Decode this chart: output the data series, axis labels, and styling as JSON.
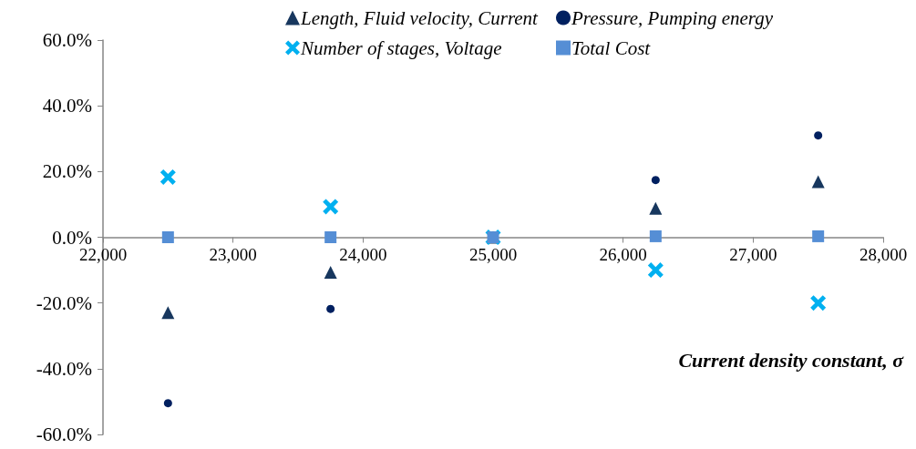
{
  "chart_data": {
    "type": "scatter",
    "xlabel": "Current density constant, σ",
    "series": [
      {
        "name": "Length, Fluid velocity, Current",
        "color": "#17375e",
        "marker": "triangle",
        "x": [
          22500,
          23750,
          25000,
          26250,
          27500
        ],
        "values": [
          -22.9,
          -10.7,
          0,
          8.8,
          16.9
        ]
      },
      {
        "name": "Pressure, Pumping energy",
        "color": "#002060",
        "marker": "circle",
        "x": [
          22500,
          23750,
          25000,
          26250,
          27500
        ],
        "values": [
          -50.5,
          -21.8,
          null,
          17.4,
          31.0
        ]
      },
      {
        "name": "Number of stages, Voltage",
        "color": "#00b0f0",
        "marker": "cross",
        "x": [
          22500,
          23750,
          25000,
          26250,
          27500
        ],
        "values": [
          18.3,
          9.3,
          0,
          -10.0,
          -20.0
        ]
      },
      {
        "name": "Total Cost",
        "color": "#558ed5",
        "marker": "square",
        "x": [
          22500,
          23750,
          25000,
          26250,
          27500
        ],
        "values": [
          0,
          0,
          0,
          0.3,
          0.3
        ]
      }
    ],
    "xlim": [
      22000,
      28000
    ],
    "xticks": [
      {
        "value": 22000,
        "label": "22,000"
      },
      {
        "value": 23000,
        "label": "23,000"
      },
      {
        "value": 24000,
        "label": "24,000"
      },
      {
        "value": 25000,
        "label": "25,000"
      },
      {
        "value": 26000,
        "label": "26,000"
      },
      {
        "value": 27000,
        "label": "27,000"
      },
      {
        "value": 28000,
        "label": "28,000"
      }
    ],
    "ylim": [
      -60,
      60
    ],
    "yticks": [
      {
        "value": -60,
        "label": "-60.0%"
      },
      {
        "value": -40,
        "label": "-40.0%"
      },
      {
        "value": -20,
        "label": "-20.0%"
      },
      {
        "value": 0,
        "label": "0.0%"
      },
      {
        "value": 20,
        "label": "20.0%"
      },
      {
        "value": 40,
        "label": "40.0%"
      },
      {
        "value": 60,
        "label": "60.0%"
      }
    ],
    "grid": false,
    "legend": "top"
  }
}
